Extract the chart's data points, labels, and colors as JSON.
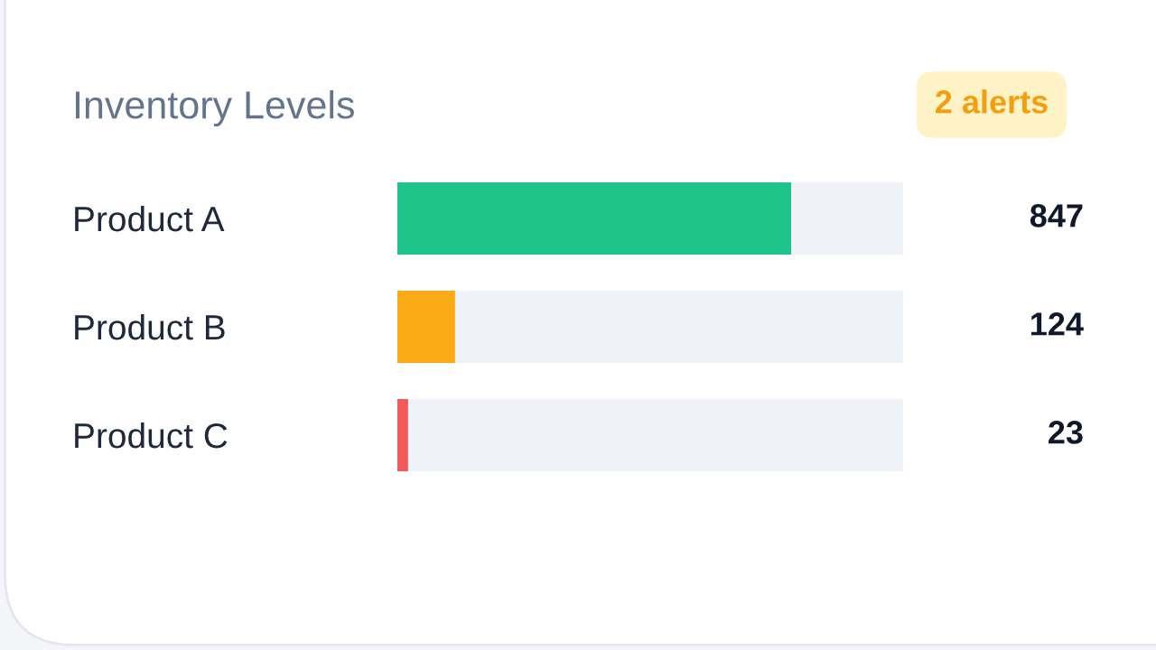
{
  "chart_data": {
    "type": "bar",
    "orientation": "horizontal",
    "data_labels": true,
    "title": "Inventory Levels",
    "annotations": [
      "2 alerts"
    ],
    "categories": [
      "Product A",
      "Product B",
      "Product C"
    ],
    "values": [
      847,
      124,
      23
    ],
    "colors": [
      "#1fc48b",
      "#fbab15",
      "#f25a5a"
    ]
  }
}
